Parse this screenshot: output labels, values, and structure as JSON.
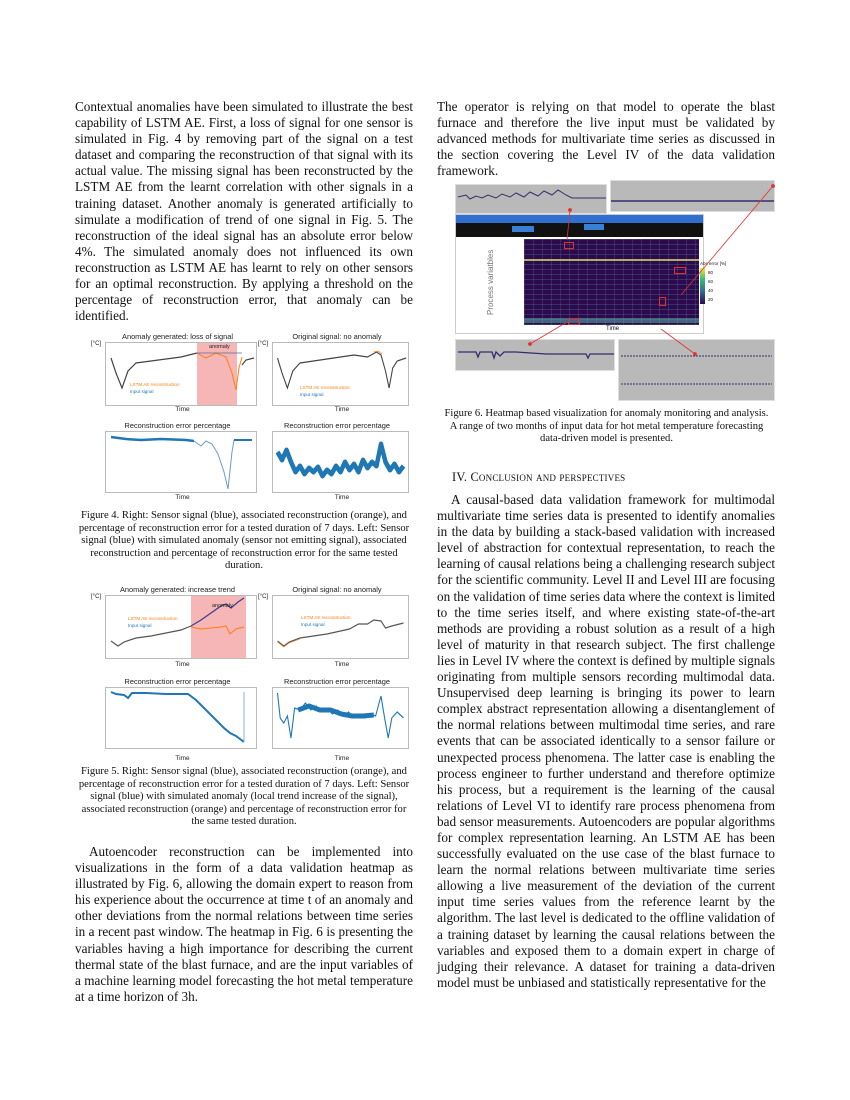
{
  "left_column": {
    "paragraph_1": "Contextual anomalies have been simulated to illustrate the best capability of LSTM AE. First, a loss of signal for one sensor is simulated in Fig. 4 by removing part of the signal on a test dataset and comparing the reconstruction of that signal with its actual value. The missing signal has been reconstructed by the LSTM AE from the learnt correlation with other signals in a training dataset. Another anomaly is generated artificially to simulate a modification of trend of one signal in Fig. 5. The reconstruction of the ideal signal has an absolute error below 4%. The simulated anomaly does not influenced its own reconstruction as LSTM AE has learnt to rely on other sensors for an optimal reconstruction. By applying a threshold on the percentage of reconstruction error, that anomaly can be identified.",
    "paragraph_2": "Autoencoder reconstruction can be implemented into visualizations in the form of a data validation heatmap as illustrated by Fig. 6, allowing the domain expert to reason from his experience about the occurrence at time t of an anomaly and other deviations from the normal relations between time series in a recent past window. The heatmap in Fig. 6 is presenting the variables having a high importance for describing the current thermal state of the blast furnace, and are the input variables of a machine learning model forecasting the hot metal temperature at a time horizon of 3h."
  },
  "figure_4": {
    "panels": {
      "top_left_title": "Anomaly generated: loss of signal",
      "top_right_title": "Original signal: no anomaly",
      "bottom_left_title": "Reconstruction error percentage",
      "bottom_right_title": "Reconstruction error percentage",
      "unit": "[°C]",
      "time_label": "Time",
      "anomaly_label": "anomaly",
      "legend_reconstruction": "LSTM AE reconstruction",
      "legend_input": "Input signal"
    },
    "caption": "Figure 4.   Right: Sensor signal (blue), associated reconstruction (orange), and percentage of reconstruction error for a tested duration of 7 days. Left: Sensor signal (blue) with simulated anomaly (sensor not emitting signal), associated reconstruction and percentage of reconstruction error for the same tested duration."
  },
  "figure_5": {
    "panels": {
      "top_left_title": "Anomaly generated: increase trend",
      "top_right_title": "Original signal: no anomaly",
      "bottom_left_title": "Reconstruction error percentage",
      "bottom_right_title": "Reconstruction error percentage",
      "unit": "[°C]",
      "time_label": "Time",
      "anomaly_label": "anomaly",
      "legend_reconstruction": "LSTM AE reconstruction",
      "legend_input": "Input signal"
    },
    "caption": "Figure 5.   Right: Sensor signal (blue), associated reconstruction (orange), and percentage of reconstruction error for a tested duration of 7 days. Left: Sensor signal (blue) with simulated anomaly (local trend increase of the signal), associated reconstruction (orange) and percentage of reconstruction error for the same tested duration."
  },
  "right_column": {
    "paragraph_1": "The operator is relying on that model to operate the blast furnace and therefore the live input must be validated by advanced methods for multivariate time series as discussed in the section covering the Level IV of the data validation framework.",
    "section_heading": "IV.    Conclusion and perspectives",
    "paragraph_2": "A causal-based data validation framework for multimodal multivariate time series data is presented to identify anomalies in the data by building a stack-based validation with increased level of abstraction for contextual representation, to reach the learning of causal relations being a challenging research subject for the scientific community. Level II and Level III are focusing on the validation of time series data where the context is limited to the time series itself, and where existing state-of-the-art methods are providing a robust solution as a result of a high  level of maturity in that research subject. The first challenge lies in Level IV where the context is defined by multiple signals originating from multiple sensors recording multimodal data. Unsupervised deep learning is bringing its power to learn complex abstract representation allowing a disentanglement of the normal relations between multimodal time series, and rare events that can be associated identically to a sensor failure or unexpected process phenomena. The latter case is enabling the process engineer to further understand and therefore optimize his process, but a requirement is the learning of the causal relations of Level VI to identify rare process phenomena from bad sensor measurements. Autoencoders are popular algorithms for complex representation learning. An LSTM AE has been successfully evaluated on the use case of the blast furnace to learn the normal relations between multivariate time series allowing a live measurement of the deviation of the current input time series values from the reference learnt by the algorithm. The last level is dedicated to the offline validation of a training dataset by learning the causal relations between the variables and exposed them to a domain expert in charge of judging their relevance. A dataset for training a data-driven model must be unbiased and statistically representative for the"
  },
  "figure_6": {
    "y_label": "Process variatbles",
    "x_label": "Time",
    "colorbar_title": "Abs error [%]",
    "colorbar_ticks": [
      "80",
      "60",
      "40",
      "20"
    ],
    "colors": {
      "low": "#2d0a4e",
      "high": "#f3e83a",
      "highlight": "#e53030"
    },
    "caption": "Figure 6.   Heatmap based visualization for anomaly monitoring and analysis. A range of two months of input data for hot metal temperature forecasting data-driven model is presented."
  },
  "colors": {
    "input_signal": "#1f77b4",
    "reconstruction": "#ff7f0e",
    "anomaly_region": "#f7b6b6"
  }
}
